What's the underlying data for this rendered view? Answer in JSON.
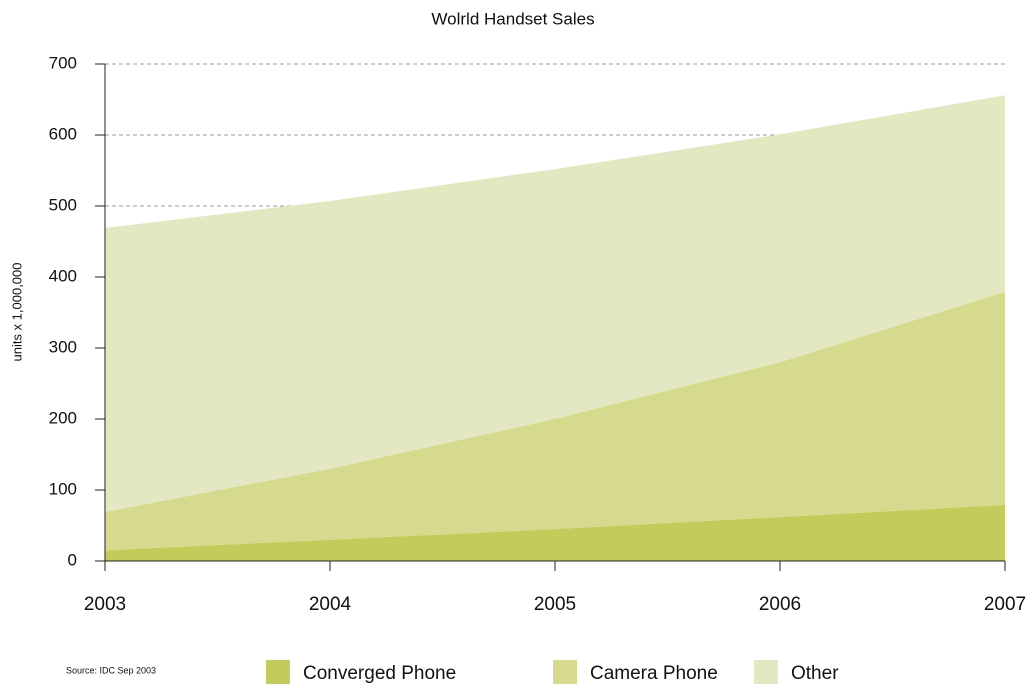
{
  "chart_data": {
    "type": "stacked_area",
    "title": "Wolrld Handset Sales",
    "ylabel": "units x 1,000,000",
    "source": "Source: IDC Sep 2003",
    "x": [
      2003,
      2004,
      2005,
      2006,
      2007
    ],
    "series": [
      {
        "name": "Converged Phone",
        "color": "#c3cc5a",
        "values": [
          15,
          30,
          45,
          62,
          79
        ]
      },
      {
        "name": "Camera Phone",
        "color": "#d5da8e",
        "values": [
          54,
          100,
          155,
          218,
          300
        ]
      },
      {
        "name": "Other",
        "color": "#e3e8c3",
        "values": [
          400,
          377,
          352,
          321,
          277
        ]
      }
    ],
    "xlim": [
      2003,
      2007
    ],
    "ylim": [
      0,
      700
    ],
    "yticks": [
      0,
      100,
      200,
      300,
      400,
      500,
      600,
      700
    ],
    "grid": true
  }
}
